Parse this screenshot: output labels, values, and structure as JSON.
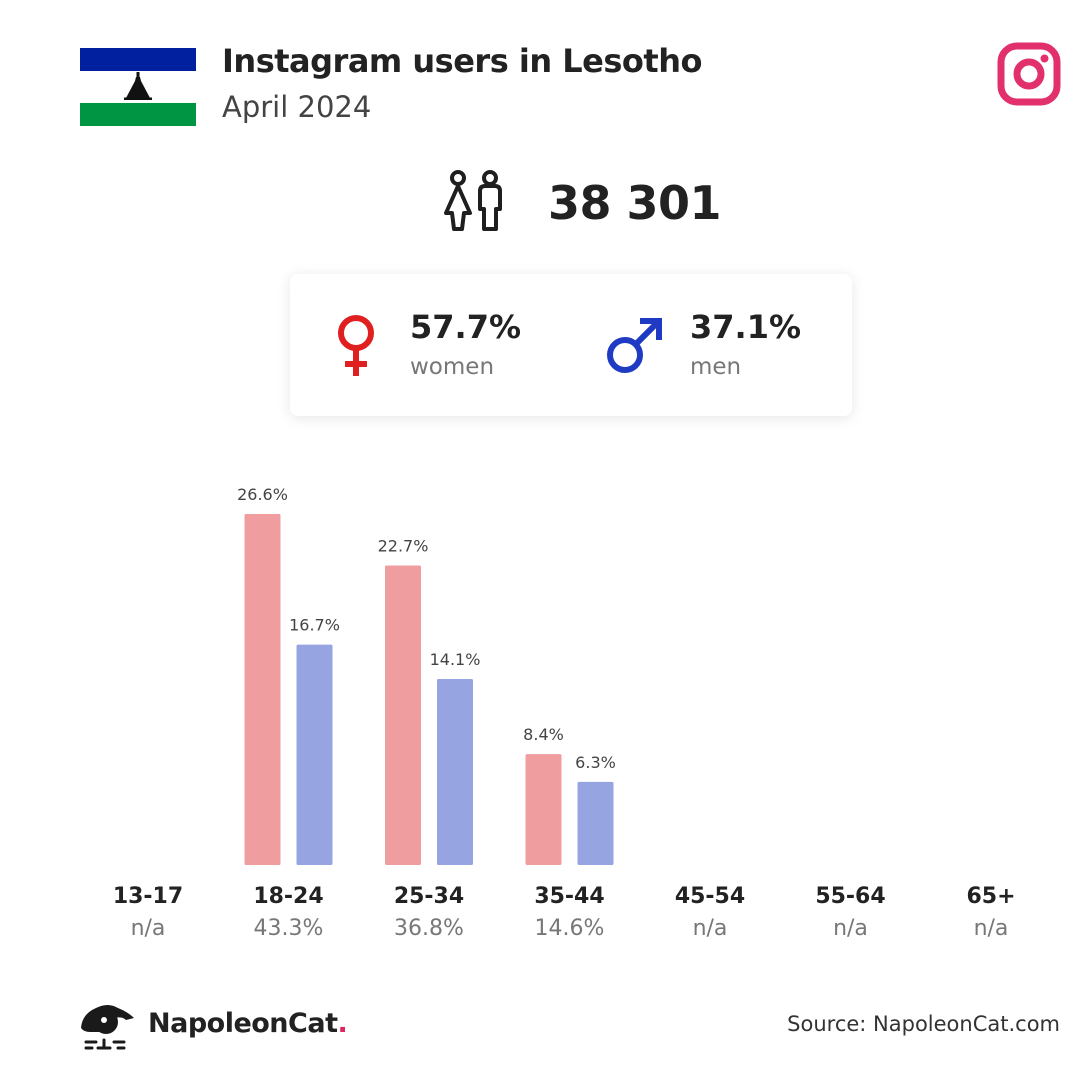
{
  "header": {
    "title": "Instagram users in Lesotho",
    "subtitle": "April 2024",
    "flag_colors": {
      "top": "#00209f",
      "middle": "#ffffff",
      "bottom": "#009543"
    },
    "icon": "instagram-icon",
    "icon_color": "#e1306c"
  },
  "total": {
    "icon": "people-icon",
    "value": "38 301"
  },
  "gender": {
    "women": {
      "icon": "female-symbol-icon",
      "pct": "57.7%",
      "label": "women",
      "color": "#e02020"
    },
    "men": {
      "icon": "male-symbol-icon",
      "pct": "37.1%",
      "label": "men",
      "color": "#1f3bc4"
    }
  },
  "chart_data": {
    "type": "bar",
    "categories": [
      "13-17",
      "18-24",
      "25-34",
      "35-44",
      "45-54",
      "55-64",
      "65+"
    ],
    "category_shares": [
      "n/a",
      "43.3%",
      "36.8%",
      "14.6%",
      "n/a",
      "n/a",
      "n/a"
    ],
    "series": [
      {
        "key": "women",
        "color": "#f09da0",
        "values": [
          null,
          26.6,
          22.7,
          8.4,
          null,
          null,
          null
        ],
        "labels": [
          "",
          "26.6%",
          "22.7%",
          "8.4%",
          "",
          "",
          ""
        ]
      },
      {
        "key": "men",
        "color": "#97a4e2",
        "values": [
          null,
          16.7,
          14.1,
          6.3,
          null,
          null,
          null
        ],
        "labels": [
          "",
          "16.7%",
          "14.1%",
          "6.3%",
          "",
          "",
          ""
        ]
      }
    ],
    "ylim": [
      0,
      26.6
    ],
    "grid": false,
    "legend": "none"
  },
  "footer": {
    "brand": "NapoleonCat",
    "brand_dot": ".",
    "source": "Source: NapoleonCat.com"
  }
}
